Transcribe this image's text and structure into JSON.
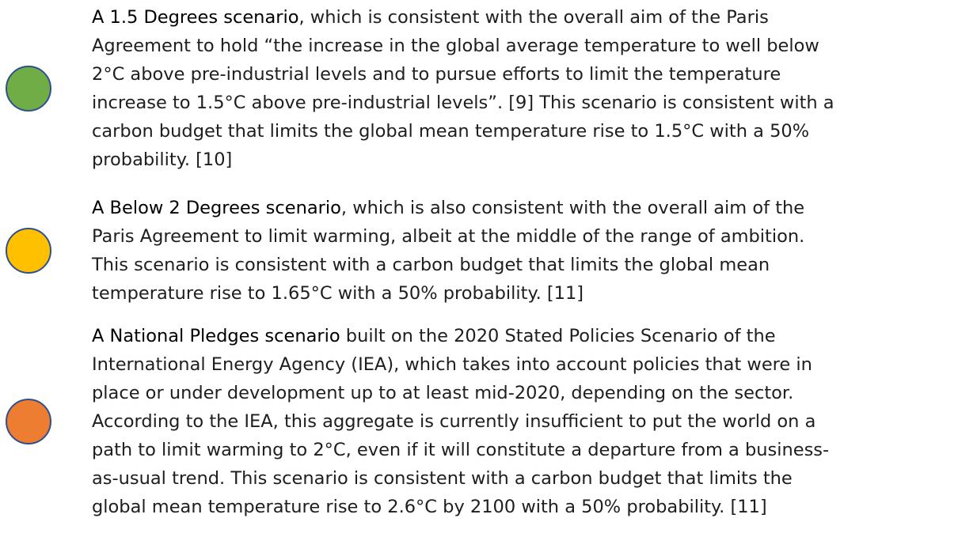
{
  "items": [
    {
      "color": "#70ad47",
      "title": "A 1.5 Degrees scenario",
      "lines": [
        ", which is consistent with the overall aim of the Paris",
        "Agreement to hold “the increase in the global average temperature to well below",
        "2°C above pre-industrial levels and to pursue efforts to limit the temperature",
        "increase to 1.5°C above pre-industrial levels”. [9] This scenario is consistent with a",
        "carbon budget that limits the global mean temperature rise to 1.5°C with a 50%",
        "probability. [10]"
      ]
    },
    {
      "color": "#ffc000",
      "title": "A Below 2 Degrees scenario",
      "lines": [
        ", which is also consistent with the overall aim of the",
        "Paris Agreement to limit warming, albeit at the middle of the range of ambition.",
        "This scenario is consistent with a carbon budget that limits the global mean",
        "temperature rise to 1.65°C with a 50% probability. [11]"
      ]
    },
    {
      "color": "#ed7d31",
      "title": "A National Pledges scenario",
      "lines": [
        " built on the 2020 Stated Policies Scenario of the",
        "International Energy Agency (IEA), which takes into account policies that were in",
        "place or under development up to at least mid-2020, depending on the sector.",
        "According to the IEA, this aggregate is currently insufficient to put the world on a",
        "path to limit warming to 2°C, even if it will constitute a departure from a business-",
        "as-usual trend. This scenario is consistent with a carbon budget that limits the",
        "global mean temperature rise to 2.6°C by 2100 with a 50% probability. [11]"
      ]
    }
  ]
}
